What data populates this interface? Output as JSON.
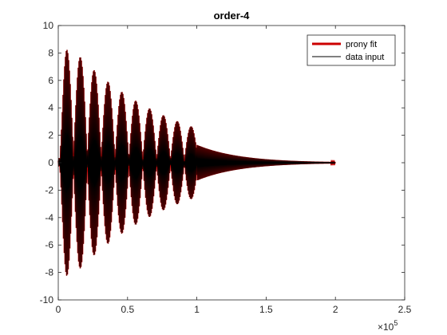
{
  "chart_data": {
    "type": "line",
    "title": "order-4",
    "xlabel": "",
    "ylabel": "",
    "xlim": [
      0,
      250000
    ],
    "ylim": [
      -10,
      10
    ],
    "x_ticks": [
      0,
      50000,
      100000,
      150000,
      200000,
      250000
    ],
    "x_tick_labels": [
      "0",
      "0.5",
      "1",
      "1.5",
      "2",
      "2.5"
    ],
    "x_exponent_base": "×10",
    "x_exponent_power": "5",
    "y_ticks": [
      -10,
      -8,
      -6,
      -4,
      -2,
      0,
      2,
      4,
      6,
      8,
      10
    ],
    "y_tick_labels": [
      "-10",
      "-8",
      "-6",
      "-4",
      "-2",
      "0",
      "2",
      "4",
      "6",
      "8",
      "10"
    ],
    "grid": false,
    "legend_position": "top-right",
    "series": [
      {
        "name": "prony fit",
        "color": "#cc0000",
        "x_range": [
          0,
          200000
        ],
        "segments": [
          {
            "x_range": [
              0,
              100000
            ],
            "peak_amplitude": 8.8,
            "peak_x": 6000,
            "beat_lobes": 10
          },
          {
            "x_range": [
              100000,
              200000
            ],
            "amplitude_start": 1.3,
            "amplitude_end": 0.05
          }
        ]
      },
      {
        "name": "data input",
        "color": "#000000",
        "x_range": [
          0,
          200000
        ],
        "segments": [
          {
            "x_range": [
              0,
              100000
            ],
            "peak_amplitude": 8.8,
            "peak_x": 6000,
            "beat_lobes": 10
          },
          {
            "x_range": [
              100000,
              200000
            ],
            "amplitude_start": 1.3,
            "amplitude_end": 0.05
          }
        ]
      }
    ]
  }
}
